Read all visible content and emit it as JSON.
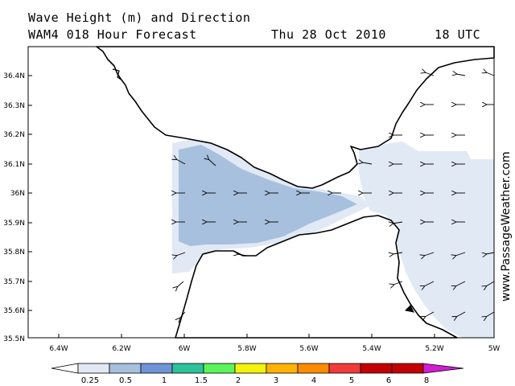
{
  "header": {
    "line1": "Wave Height (m) and Direction",
    "line2_left": "WAM4 018 Hour Forecast",
    "date": "Thu 28 Oct 2010",
    "time": "18 UTC"
  },
  "watermark": "www.PassageWeather.com",
  "map": {
    "lat_ticks": [
      "36.4N",
      "36.3N",
      "36.2N",
      "36.1N",
      "36N",
      "35.9N",
      "35.8N",
      "35.7N",
      "35.6N",
      "35.5N"
    ],
    "lon_ticks": [
      "6.4W",
      "6.2W",
      "6W",
      "5.8W",
      "5.6W",
      "5.4W",
      "5.2W",
      "5W"
    ],
    "colors": {
      "band_025": "#e1e9f5",
      "band_05": "#a7c0de",
      "land": "#ffffff",
      "coast": "#000000"
    }
  },
  "colorbar": {
    "labels": [
      "0.25",
      "0.5",
      "1",
      "1.5",
      "2",
      "3",
      "4",
      "5",
      "6",
      "8"
    ],
    "colors": [
      "#ffffff",
      "#e1e9f5",
      "#a7c0de",
      "#6f95d6",
      "#2ec29a",
      "#5bf55b",
      "#f2f20a",
      "#ffb300",
      "#ff8c00",
      "#f23a3a",
      "#c40000",
      "#d01ed0"
    ]
  }
}
